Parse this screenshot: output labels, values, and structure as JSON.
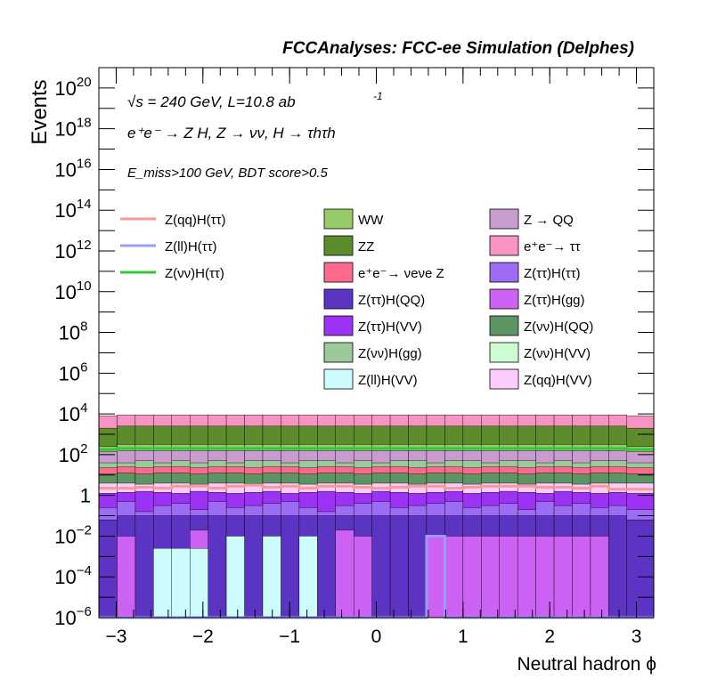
{
  "chart_data": {
    "type": "histogram-stacked",
    "title": "FCCAnalyses: FCC-ee Simulation (Delphes)",
    "xlabel": "Neutral hadron ϕ",
    "ylabel": "Events",
    "yscale": "log",
    "xlim": [
      -3.2,
      3.2
    ],
    "ylim": [
      1e-06,
      1e+21
    ],
    "x_ticks": [
      -3,
      -2,
      -1,
      0,
      1,
      2,
      3
    ],
    "x_tick_labels": [
      "−3",
      "−2",
      "−1",
      "0",
      "1",
      "2",
      "3"
    ],
    "y_tick_exponents": [
      -6,
      -4,
      -2,
      0,
      2,
      4,
      6,
      8,
      10,
      12,
      14,
      16,
      18,
      20
    ],
    "annotations": {
      "energy_lumi": "√s = 240 GeV, L=10.8 ab",
      "energy_lumi_sup": "-1",
      "process": "e⁺e⁻ → Z H, Z → νν, H → τhτh",
      "selection": "E_miss>100 GeV, BDT score>0.5"
    },
    "bin_edges": [
      -3.2,
      -2.99,
      -2.78,
      -2.57,
      -2.36,
      -2.15,
      -1.94,
      -1.73,
      -1.52,
      -1.31,
      -1.1,
      -0.89,
      -0.68,
      -0.47,
      -0.26,
      -0.05,
      0.16,
      0.37,
      0.58,
      0.79,
      1.0,
      1.21,
      1.42,
      1.63,
      1.84,
      2.05,
      2.26,
      2.47,
      2.68,
      2.89,
      3.2
    ],
    "stack_tops": [
      {
        "name": "e⁺e⁻→ ττ",
        "color": "#f794c4",
        "log10_top": [
          3.9,
          3.95,
          3.95,
          3.95,
          3.95,
          3.95,
          3.95,
          3.95,
          3.95,
          3.95,
          3.95,
          3.95,
          3.95,
          3.95,
          3.95,
          3.95,
          3.95,
          3.95,
          3.95,
          3.95,
          3.95,
          3.95,
          3.95,
          3.95,
          3.95,
          3.95,
          3.95,
          3.95,
          3.95,
          3.9
        ]
      },
      {
        "name": "ZZ",
        "color": "#5c8c2c",
        "log10_top": [
          3.3,
          3.4,
          3.4,
          3.4,
          3.4,
          3.4,
          3.4,
          3.4,
          3.4,
          3.4,
          3.4,
          3.4,
          3.4,
          3.4,
          3.4,
          3.4,
          3.4,
          3.4,
          3.4,
          3.4,
          3.4,
          3.4,
          3.4,
          3.4,
          3.4,
          3.4,
          3.4,
          3.4,
          3.4,
          3.3
        ]
      },
      {
        "name": "WW",
        "color": "#96cc68",
        "log10_top": [
          2.4,
          2.5,
          2.5,
          2.5,
          2.5,
          2.5,
          2.5,
          2.5,
          2.5,
          2.5,
          2.5,
          2.5,
          2.5,
          2.5,
          2.5,
          2.5,
          2.5,
          2.5,
          2.5,
          2.5,
          2.5,
          2.5,
          2.5,
          2.5,
          2.5,
          2.5,
          2.5,
          2.5,
          2.5,
          2.4
        ]
      },
      {
        "name": "Z → QQ",
        "color": "#c89ccc",
        "log10_top": [
          2.15,
          2.2,
          2.2,
          2.2,
          2.2,
          2.2,
          2.2,
          2.2,
          2.2,
          2.2,
          2.2,
          2.2,
          2.2,
          2.2,
          2.2,
          2.2,
          2.2,
          2.2,
          2.2,
          2.2,
          2.2,
          2.2,
          2.2,
          2.2,
          2.2,
          2.2,
          2.2,
          2.2,
          2.2,
          2.15
        ]
      },
      {
        "name": "Z(νν)H(gg)",
        "color": "#9cc89a",
        "log10_top": [
          1.6,
          1.6,
          1.7,
          1.6,
          1.7,
          1.6,
          1.7,
          1.6,
          1.7,
          1.7,
          1.6,
          1.7,
          1.7,
          1.6,
          1.7,
          1.6,
          1.7,
          1.7,
          1.6,
          1.7,
          1.7,
          1.6,
          1.7,
          1.7,
          1.6,
          1.7,
          1.6,
          1.7,
          1.7,
          1.6
        ]
      },
      {
        "name": "e⁺e⁻→ νeνe Z",
        "color": "#ff6a8c",
        "log10_top": [
          1.35,
          1.4,
          1.35,
          1.4,
          1.4,
          1.35,
          1.4,
          1.4,
          1.35,
          1.4,
          1.4,
          1.35,
          1.4,
          1.4,
          1.35,
          1.4,
          1.4,
          1.35,
          1.4,
          1.4,
          1.35,
          1.4,
          1.4,
          1.35,
          1.4,
          1.4,
          1.35,
          1.4,
          1.4,
          1.35
        ]
      },
      {
        "name": "Z(νν)H(QQ)",
        "color": "#5c9464",
        "log10_top": [
          1.05,
          1.1,
          1.05,
          1.1,
          1.1,
          1.05,
          1.1,
          1.1,
          1.05,
          1.1,
          1.1,
          1.05,
          1.1,
          1.1,
          1.05,
          1.1,
          1.1,
          1.05,
          1.1,
          1.1,
          1.05,
          1.1,
          1.1,
          1.05,
          1.1,
          1.1,
          1.05,
          1.1,
          1.1,
          1.05
        ]
      },
      {
        "name": "Z(qq)H(VV)",
        "color": "#fcccfc",
        "log10_top": [
          0.6,
          0.6,
          0.55,
          0.6,
          0.6,
          0.55,
          0.6,
          0.6,
          0.55,
          0.6,
          0.6,
          0.55,
          0.6,
          0.6,
          0.55,
          0.6,
          0.6,
          0.55,
          0.6,
          0.6,
          0.55,
          0.6,
          0.6,
          0.55,
          0.6,
          0.6,
          0.55,
          0.6,
          0.6,
          0.6
        ]
      },
      {
        "name": "Z(ττ)H(VV)",
        "color": "#9c32f4",
        "log10_top": [
          0.1,
          0.15,
          0.2,
          0.15,
          0.1,
          0.2,
          0.15,
          0.1,
          0.15,
          0.2,
          0.1,
          0.15,
          0.2,
          0.15,
          0.1,
          0.2,
          0.15,
          0.1,
          0.15,
          0.2,
          0.1,
          0.15,
          0.2,
          0.15,
          0.1,
          0.2,
          0.15,
          0.1,
          0.15,
          0.1
        ]
      },
      {
        "name": "Z(ττ)H(ττ)",
        "color": "#9c6cf4",
        "log10_top": [
          -0.6,
          -0.3,
          -0.8,
          -0.5,
          -0.4,
          -0.7,
          -0.3,
          -0.6,
          -0.5,
          -0.4,
          -0.3,
          -0.6,
          -0.8,
          -0.5,
          -0.4,
          -0.3,
          -0.6,
          -0.5,
          -0.4,
          -0.3,
          -0.6,
          -0.5,
          -0.4,
          -0.7,
          -0.3,
          -0.5,
          -0.4,
          -0.6,
          -0.5,
          -0.7
        ]
      },
      {
        "name": "Z(ττ)H(QQ)",
        "color": "#5c34c4",
        "log10_top": [
          -1.2,
          -1.0,
          -1.0,
          -1.0,
          -1.0,
          -1.0,
          -1.0,
          -1.0,
          -1.0,
          -1.0,
          -1.0,
          -1.0,
          -1.0,
          -1.0,
          -1.0,
          -1.0,
          -1.0,
          -1.0,
          -1.0,
          -1.0,
          -1.0,
          -1.0,
          -1.0,
          -1.0,
          -1.0,
          -1.0,
          -1.0,
          -1.0,
          -1.0,
          -1.2
        ]
      },
      {
        "name": "Z(ττ)H(gg)",
        "color": "#cc62f4",
        "log10_top": [
          -6,
          -2.0,
          -6,
          -6,
          -6,
          -1.7,
          -6,
          -2.0,
          -6,
          -6,
          -6,
          -6,
          -6,
          -1.7,
          -2.0,
          -6,
          -6,
          -6,
          -2.0,
          -2.0,
          -2.0,
          -2.0,
          -2.0,
          -2.0,
          -2.0,
          -2.0,
          -2.0,
          -2.0,
          -6,
          -6
        ]
      },
      {
        "name": "Z(ll)H(VV)",
        "color": "#ccfcfc",
        "log10_top": [
          -6,
          -6,
          -6,
          -2.6,
          -2.6,
          -2.6,
          -6,
          -2.0,
          -6,
          -2.0,
          -6,
          -2.0,
          -6,
          -6,
          -6,
          -6,
          -6,
          -6,
          -6,
          -6,
          -6,
          -6,
          -6,
          -6,
          -6,
          -6,
          -6,
          -6,
          -6,
          -6
        ]
      }
    ],
    "signal_lines": [
      {
        "name": "Z(qq)H(ττ)",
        "color": "#f99a9a",
        "log10_y": [
          0.35,
          0.35,
          0.4,
          0.35,
          0.45,
          0.45,
          0.35,
          0.45,
          0.5,
          0.4,
          0.45,
          0.35,
          0.45,
          0.45,
          0.4,
          0.35,
          0.4,
          0.45,
          0.45,
          0.35,
          0.4,
          0.45,
          0.45,
          0.45,
          0.4,
          0.4,
          0.35,
          0.45,
          0.3,
          0.3
        ]
      },
      {
        "name": "Z(ll)H(ττ)",
        "color": "#9a9af9",
        "log10_y": [
          -6,
          -6,
          -6,
          -6,
          -6,
          -6,
          -6,
          -6,
          -6,
          -6,
          -6,
          -6,
          -6,
          -6,
          -6,
          -6,
          -6,
          -6,
          -2.0,
          -6,
          -6,
          -6,
          -6,
          -6,
          -6,
          -6,
          -6,
          -6,
          -6,
          -6
        ]
      },
      {
        "name": "Z(νν)H(ττ)",
        "color": "#32c832",
        "log10_y": [
          2.25,
          2.3,
          2.3,
          2.3,
          2.3,
          2.3,
          2.3,
          2.3,
          2.3,
          2.3,
          2.3,
          2.3,
          2.3,
          2.3,
          2.3,
          2.3,
          2.3,
          2.3,
          2.3,
          2.3,
          2.3,
          2.3,
          2.3,
          2.3,
          2.3,
          2.3,
          2.3,
          2.3,
          2.3,
          2.25
        ]
      }
    ],
    "legend": {
      "lines": [
        {
          "label": "Z(qq)H(ττ)",
          "color": "#f99a9a"
        },
        {
          "label": "Z(ll)H(ττ)",
          "color": "#9a9af9"
        },
        {
          "label": "Z(νν)H(ττ)",
          "color": "#32c832"
        }
      ],
      "col2": [
        {
          "label": "WW",
          "color": "#96cc68"
        },
        {
          "label": "ZZ",
          "color": "#5c8c2c"
        },
        {
          "label": "e⁺e⁻→ νeνe Z",
          "color": "#ff6a8c"
        },
        {
          "label": "Z(ττ)H(QQ)",
          "color": "#5c34c4"
        },
        {
          "label": "Z(ττ)H(VV)",
          "color": "#9c32f4"
        },
        {
          "label": "Z(νν)H(gg)",
          "color": "#9cc89a"
        },
        {
          "label": "Z(ll)H(VV)",
          "color": "#ccfcfc"
        }
      ],
      "col3": [
        {
          "label": "Z → QQ",
          "color": "#c89ccc"
        },
        {
          "label": "e⁺e⁻→ ττ",
          "color": "#f794c4"
        },
        {
          "label": "Z(ττ)H(ττ)",
          "color": "#9c6cf4"
        },
        {
          "label": "Z(ττ)H(gg)",
          "color": "#cc62f4"
        },
        {
          "label": "Z(νν)H(QQ)",
          "color": "#5c9464"
        },
        {
          "label": "Z(νν)H(VV)",
          "color": "#ccfcd0"
        },
        {
          "label": "Z(qq)H(VV)",
          "color": "#fcccfc"
        }
      ]
    }
  }
}
